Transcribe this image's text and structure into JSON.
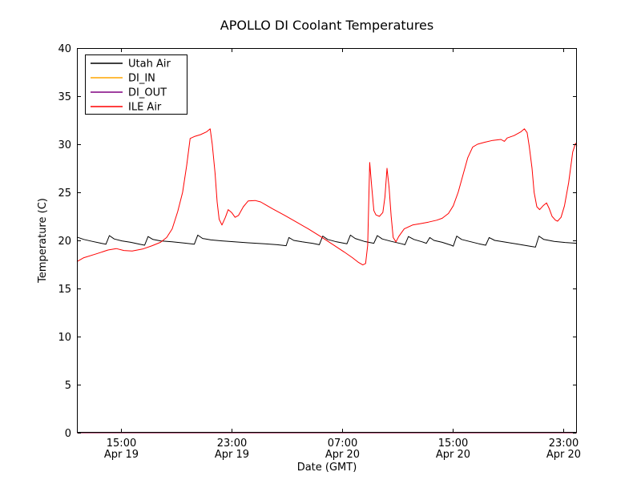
{
  "chart_data": {
    "type": "line",
    "title": "APOLLO DI Coolant Temperatures",
    "xlabel": "Date (GMT)",
    "ylabel": "Temperature (C)",
    "x_unit": "hours since Apr 19 00:00 GMT",
    "xlim": [
      11.8,
      48.0
    ],
    "ylim": [
      0,
      40
    ],
    "grid": false,
    "y_ticks": [
      0,
      5,
      10,
      15,
      20,
      25,
      30,
      35,
      40
    ],
    "x_ticks": [
      {
        "hour": 15,
        "time": "15:00",
        "date": "Apr 19"
      },
      {
        "hour": 23,
        "time": "23:00",
        "date": "Apr 19"
      },
      {
        "hour": 31,
        "time": "07:00",
        "date": "Apr 20"
      },
      {
        "hour": 39,
        "time": "15:00",
        "date": "Apr 20"
      },
      {
        "hour": 47,
        "time": "23:00",
        "date": "Apr 20"
      }
    ],
    "legend": {
      "position": "upper-left",
      "entries": [
        "Utah Air",
        "DI_IN",
        "DI_OUT",
        "ILE Air"
      ]
    },
    "series": [
      {
        "name": "Utah Air",
        "color": "#000000",
        "points": [
          [
            11.8,
            20.35
          ],
          [
            12.3,
            20.1
          ],
          [
            12.9,
            19.9
          ],
          [
            13.5,
            19.72
          ],
          [
            13.9,
            19.6
          ],
          [
            14.15,
            20.5
          ],
          [
            14.5,
            20.15
          ],
          [
            15.05,
            19.95
          ],
          [
            15.7,
            19.8
          ],
          [
            16.3,
            19.62
          ],
          [
            16.7,
            19.5
          ],
          [
            16.95,
            20.4
          ],
          [
            17.3,
            20.1
          ],
          [
            17.85,
            19.95
          ],
          [
            18.7,
            19.85
          ],
          [
            19.6,
            19.72
          ],
          [
            20.3,
            19.6
          ],
          [
            20.55,
            20.55
          ],
          [
            20.9,
            20.2
          ],
          [
            21.5,
            20.05
          ],
          [
            22.3,
            19.95
          ],
          [
            23.2,
            19.85
          ],
          [
            24.2,
            19.75
          ],
          [
            25.4,
            19.65
          ],
          [
            26.3,
            19.55
          ],
          [
            26.95,
            19.45
          ],
          [
            27.15,
            20.3
          ],
          [
            27.5,
            20.0
          ],
          [
            28.1,
            19.85
          ],
          [
            28.85,
            19.7
          ],
          [
            29.35,
            19.55
          ],
          [
            29.6,
            20.45
          ],
          [
            29.95,
            20.1
          ],
          [
            30.6,
            19.85
          ],
          [
            31.35,
            19.65
          ],
          [
            31.6,
            20.55
          ],
          [
            31.95,
            20.2
          ],
          [
            32.6,
            19.9
          ],
          [
            33.3,
            19.7
          ],
          [
            33.55,
            20.5
          ],
          [
            33.9,
            20.15
          ],
          [
            34.55,
            19.9
          ],
          [
            35.3,
            19.65
          ],
          [
            35.55,
            19.55
          ],
          [
            35.8,
            20.4
          ],
          [
            36.2,
            20.1
          ],
          [
            36.8,
            19.85
          ],
          [
            37.1,
            19.7
          ],
          [
            37.35,
            20.3
          ],
          [
            37.65,
            20.0
          ],
          [
            38.25,
            19.8
          ],
          [
            38.9,
            19.5
          ],
          [
            39.05,
            19.4
          ],
          [
            39.3,
            20.45
          ],
          [
            39.65,
            20.1
          ],
          [
            40.2,
            19.9
          ],
          [
            40.9,
            19.65
          ],
          [
            41.4,
            19.5
          ],
          [
            41.65,
            20.3
          ],
          [
            42.05,
            20.0
          ],
          [
            42.9,
            19.8
          ],
          [
            43.75,
            19.6
          ],
          [
            44.6,
            19.4
          ],
          [
            45.0,
            19.3
          ],
          [
            45.25,
            20.45
          ],
          [
            45.6,
            20.1
          ],
          [
            46.35,
            19.9
          ],
          [
            47.15,
            19.78
          ],
          [
            48.0,
            19.7
          ]
        ]
      },
      {
        "name": "DI_IN",
        "color": "#ffa500",
        "points": [
          [
            11.8,
            0
          ],
          [
            48.0,
            0
          ]
        ]
      },
      {
        "name": "DI_OUT",
        "color": "#800080",
        "points": [
          [
            11.8,
            0
          ],
          [
            48.0,
            0
          ]
        ]
      },
      {
        "name": "ILE Air",
        "color": "#ff0000",
        "points": [
          [
            11.8,
            17.8
          ],
          [
            12.3,
            18.2
          ],
          [
            13.2,
            18.6
          ],
          [
            14.05,
            19.0
          ],
          [
            14.65,
            19.15
          ],
          [
            15.2,
            18.95
          ],
          [
            15.8,
            18.9
          ],
          [
            16.55,
            19.1
          ],
          [
            17.25,
            19.45
          ],
          [
            17.85,
            19.8
          ],
          [
            18.3,
            20.3
          ],
          [
            18.7,
            21.2
          ],
          [
            19.1,
            23.0
          ],
          [
            19.45,
            25.0
          ],
          [
            19.75,
            27.8
          ],
          [
            20.0,
            30.6
          ],
          [
            20.3,
            30.8
          ],
          [
            20.75,
            31.0
          ],
          [
            21.2,
            31.3
          ],
          [
            21.45,
            31.6
          ],
          [
            21.6,
            30.0
          ],
          [
            21.8,
            27.0
          ],
          [
            21.95,
            24.0
          ],
          [
            22.1,
            22.2
          ],
          [
            22.3,
            21.6
          ],
          [
            22.55,
            22.4
          ],
          [
            22.75,
            23.2
          ],
          [
            23.0,
            22.9
          ],
          [
            23.25,
            22.4
          ],
          [
            23.5,
            22.6
          ],
          [
            23.85,
            23.5
          ],
          [
            24.2,
            24.1
          ],
          [
            24.7,
            24.15
          ],
          [
            25.1,
            24.0
          ],
          [
            25.95,
            23.3
          ],
          [
            26.85,
            22.6
          ],
          [
            27.7,
            21.9
          ],
          [
            28.55,
            21.2
          ],
          [
            29.45,
            20.4
          ],
          [
            30.3,
            19.6
          ],
          [
            31.15,
            18.8
          ],
          [
            31.75,
            18.2
          ],
          [
            32.2,
            17.7
          ],
          [
            32.5,
            17.45
          ],
          [
            32.7,
            17.6
          ],
          [
            32.85,
            19.5
          ],
          [
            33.0,
            28.1
          ],
          [
            33.15,
            25.5
          ],
          [
            33.3,
            23.1
          ],
          [
            33.45,
            22.65
          ],
          [
            33.7,
            22.5
          ],
          [
            33.95,
            22.9
          ],
          [
            34.1,
            24.5
          ],
          [
            34.25,
            27.5
          ],
          [
            34.4,
            25.5
          ],
          [
            34.55,
            22.5
          ],
          [
            34.7,
            20.3
          ],
          [
            34.9,
            19.85
          ],
          [
            35.1,
            20.4
          ],
          [
            35.5,
            21.2
          ],
          [
            36.1,
            21.6
          ],
          [
            36.7,
            21.75
          ],
          [
            37.25,
            21.9
          ],
          [
            37.85,
            22.1
          ],
          [
            38.25,
            22.3
          ],
          [
            38.7,
            22.8
          ],
          [
            39.05,
            23.6
          ],
          [
            39.4,
            25.0
          ],
          [
            39.75,
            26.8
          ],
          [
            40.1,
            28.6
          ],
          [
            40.45,
            29.7
          ],
          [
            40.8,
            30.0
          ],
          [
            41.3,
            30.2
          ],
          [
            41.9,
            30.4
          ],
          [
            42.5,
            30.5
          ],
          [
            42.75,
            30.3
          ],
          [
            42.95,
            30.65
          ],
          [
            43.45,
            30.9
          ],
          [
            43.95,
            31.3
          ],
          [
            44.2,
            31.6
          ],
          [
            44.4,
            31.2
          ],
          [
            44.55,
            29.8
          ],
          [
            44.75,
            27.5
          ],
          [
            44.9,
            25.0
          ],
          [
            45.1,
            23.5
          ],
          [
            45.3,
            23.2
          ],
          [
            45.55,
            23.6
          ],
          [
            45.8,
            23.9
          ],
          [
            46.0,
            23.3
          ],
          [
            46.2,
            22.5
          ],
          [
            46.45,
            22.1
          ],
          [
            46.6,
            22.0
          ],
          [
            46.85,
            22.4
          ],
          [
            47.1,
            23.6
          ],
          [
            47.4,
            26.0
          ],
          [
            47.7,
            29.2
          ],
          [
            47.9,
            30.1
          ],
          [
            48.0,
            29.8
          ]
        ]
      }
    ]
  }
}
